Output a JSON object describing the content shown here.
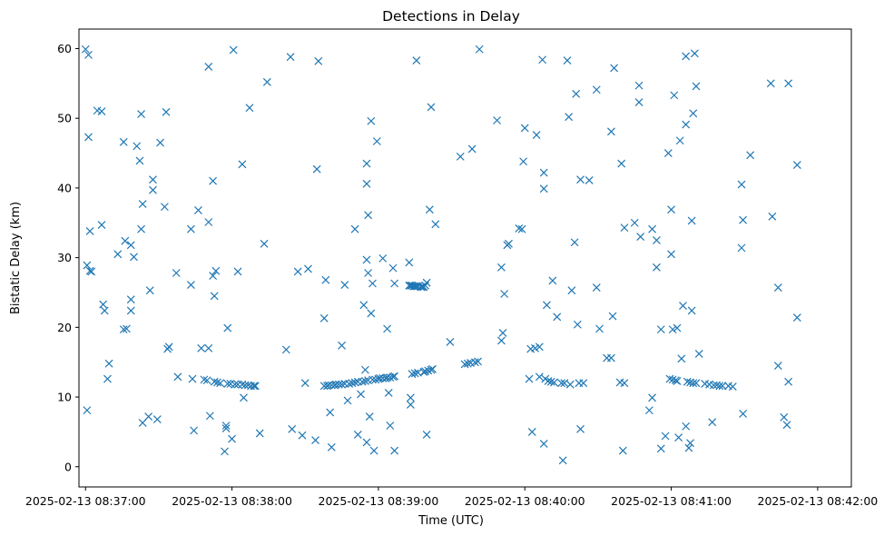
{
  "chart_data": {
    "type": "scatter",
    "title": "Detections in Delay",
    "xlabel": "Time (UTC)",
    "ylabel": "Bistatic Delay (km)",
    "marker": "x",
    "color": "#1f77b4",
    "xlim": [
      -0.045,
      5.23
    ],
    "ylim": [
      -2.9,
      62.8
    ],
    "x_units": "minutes after 2025-02-13 08:37:00",
    "x_ticks": [
      0,
      1,
      2,
      3,
      4,
      5
    ],
    "x_tick_labels": [
      "2025-02-13 08:37:00",
      "2025-02-13 08:38:00",
      "2025-02-13 08:39:00",
      "2025-02-13 08:40:00",
      "2025-02-13 08:41:00",
      "2025-02-13 08:42:00"
    ],
    "y_ticks": [
      0,
      10,
      20,
      30,
      40,
      50,
      60
    ],
    "y_tick_labels": [
      "0",
      "10",
      "20",
      "30",
      "40",
      "50",
      "60"
    ],
    "grid": false,
    "points": [
      [
        0.0,
        59.9
      ],
      [
        0.02,
        59.1
      ],
      [
        0.02,
        47.3
      ],
      [
        0.03,
        33.8
      ],
      [
        0.01,
        28.9
      ],
      [
        0.03,
        28.1
      ],
      [
        0.04,
        28.0
      ],
      [
        0.01,
        8.1
      ],
      [
        0.08,
        51.1
      ],
      [
        0.11,
        51.0
      ],
      [
        0.11,
        34.7
      ],
      [
        0.12,
        23.3
      ],
      [
        0.13,
        22.4
      ],
      [
        0.16,
        14.8
      ],
      [
        0.15,
        12.6
      ],
      [
        0.22,
        30.5
      ],
      [
        0.26,
        46.6
      ],
      [
        0.27,
        32.4
      ],
      [
        0.26,
        19.7
      ],
      [
        0.28,
        19.8
      ],
      [
        0.31,
        31.8
      ],
      [
        0.33,
        30.1
      ],
      [
        0.31,
        24.0
      ],
      [
        0.31,
        22.4
      ],
      [
        0.35,
        46.0
      ],
      [
        0.37,
        43.9
      ],
      [
        0.38,
        50.6
      ],
      [
        0.39,
        37.7
      ],
      [
        0.38,
        34.1
      ],
      [
        0.39,
        6.3
      ],
      [
        0.43,
        7.2
      ],
      [
        0.46,
        41.2
      ],
      [
        0.46,
        39.7
      ],
      [
        0.44,
        25.3
      ],
      [
        0.51,
        46.5
      ],
      [
        0.49,
        6.8
      ],
      [
        0.55,
        50.9
      ],
      [
        0.54,
        37.3
      ],
      [
        0.56,
        16.9
      ],
      [
        0.57,
        17.2
      ],
      [
        0.62,
        27.8
      ],
      [
        0.63,
        12.9
      ],
      [
        0.72,
        34.1
      ],
      [
        0.72,
        26.1
      ],
      [
        0.73,
        12.6
      ],
      [
        0.74,
        5.2
      ],
      [
        0.77,
        36.8
      ],
      [
        0.79,
        17.0
      ],
      [
        0.81,
        12.5
      ],
      [
        0.83,
        12.4
      ],
      [
        0.84,
        57.4
      ],
      [
        0.84,
        35.1
      ],
      [
        0.84,
        17.0
      ],
      [
        0.85,
        7.3
      ],
      [
        0.87,
        41.0
      ],
      [
        0.87,
        27.4
      ],
      [
        0.89,
        28.1
      ],
      [
        0.88,
        24.5
      ],
      [
        0.88,
        12.2
      ],
      [
        0.9,
        12.1
      ],
      [
        0.92,
        12.0
      ],
      [
        0.95,
        2.2
      ],
      [
        0.96,
        5.9
      ],
      [
        0.97,
        19.9
      ],
      [
        0.97,
        11.9
      ],
      [
        0.96,
        5.5
      ],
      [
        1.0,
        4.0
      ],
      [
        0.99,
        11.9
      ],
      [
        1.01,
        59.8
      ],
      [
        1.04,
        28.0
      ],
      [
        1.02,
        11.8
      ],
      [
        1.04,
        11.8
      ],
      [
        1.07,
        43.4
      ],
      [
        1.07,
        11.8
      ],
      [
        1.08,
        9.9
      ],
      [
        1.09,
        11.7
      ],
      [
        1.11,
        11.7
      ],
      [
        1.12,
        51.5
      ],
      [
        1.13,
        11.6
      ],
      [
        1.15,
        11.6
      ],
      [
        1.16,
        11.6
      ],
      [
        1.19,
        4.8
      ],
      [
        1.22,
        32.0
      ],
      [
        1.24,
        55.2
      ],
      [
        1.37,
        16.8
      ],
      [
        1.41,
        5.4
      ],
      [
        1.4,
        58.8
      ],
      [
        1.45,
        28.0
      ],
      [
        1.48,
        4.5
      ],
      [
        1.5,
        12.0
      ],
      [
        1.52,
        28.4
      ],
      [
        1.57,
        3.8
      ],
      [
        1.58,
        42.7
      ],
      [
        1.59,
        58.2
      ],
      [
        1.63,
        21.3
      ],
      [
        1.64,
        26.8
      ],
      [
        1.63,
        11.6
      ],
      [
        1.65,
        11.6
      ],
      [
        1.66,
        11.7
      ],
      [
        1.68,
        11.7
      ],
      [
        1.67,
        7.8
      ],
      [
        1.68,
        2.8
      ],
      [
        1.7,
        11.7
      ],
      [
        1.71,
        11.8
      ],
      [
        1.73,
        11.8
      ],
      [
        1.75,
        11.8
      ],
      [
        1.75,
        17.4
      ],
      [
        1.77,
        26.1
      ],
      [
        1.77,
        11.9
      ],
      [
        1.79,
        9.5
      ],
      [
        1.8,
        11.9
      ],
      [
        1.82,
        12.0
      ],
      [
        1.84,
        34.1
      ],
      [
        1.84,
        12.1
      ],
      [
        1.86,
        4.6
      ],
      [
        1.86,
        12.2
      ],
      [
        1.89,
        12.2
      ],
      [
        1.88,
        10.4
      ],
      [
        1.9,
        23.2
      ],
      [
        1.92,
        43.5
      ],
      [
        1.92,
        40.6
      ],
      [
        1.93,
        36.1
      ],
      [
        1.92,
        29.7
      ],
      [
        1.93,
        27.8
      ],
      [
        1.91,
        13.9
      ],
      [
        1.91,
        12.3
      ],
      [
        1.93,
        12.4
      ],
      [
        1.92,
        3.5
      ],
      [
        1.95,
        49.6
      ],
      [
        1.95,
        22.0
      ],
      [
        1.96,
        26.3
      ],
      [
        1.94,
        7.2
      ],
      [
        1.96,
        12.5
      ],
      [
        1.97,
        2.3
      ],
      [
        1.98,
        12.5
      ],
      [
        1.99,
        46.7
      ],
      [
        2.0,
        12.6
      ],
      [
        2.01,
        12.7
      ],
      [
        2.03,
        29.9
      ],
      [
        2.03,
        12.7
      ],
      [
        2.05,
        12.7
      ],
      [
        2.06,
        19.8
      ],
      [
        2.06,
        12.8
      ],
      [
        2.08,
        12.8
      ],
      [
        2.08,
        5.9
      ],
      [
        2.07,
        10.6
      ],
      [
        2.1,
        28.5
      ],
      [
        2.1,
        12.9
      ],
      [
        2.11,
        13.0
      ],
      [
        2.11,
        2.3
      ],
      [
        2.11,
        26.3
      ],
      [
        2.21,
        29.3
      ],
      [
        2.21,
        26.0
      ],
      [
        2.22,
        26.0
      ],
      [
        2.23,
        26.0
      ],
      [
        2.24,
        25.9
      ],
      [
        2.25,
        25.9
      ],
      [
        2.26,
        25.9
      ],
      [
        2.27,
        25.9
      ],
      [
        2.29,
        25.8
      ],
      [
        2.3,
        25.8
      ],
      [
        2.31,
        25.8
      ],
      [
        2.33,
        26.4
      ],
      [
        2.22,
        9.9
      ],
      [
        2.22,
        8.9
      ],
      [
        2.23,
        13.3
      ],
      [
        2.25,
        13.4
      ],
      [
        2.27,
        13.5
      ],
      [
        2.31,
        13.6
      ],
      [
        2.32,
        13.7
      ],
      [
        2.32,
        26.0
      ],
      [
        2.33,
        4.6
      ],
      [
        2.34,
        13.8
      ],
      [
        2.36,
        13.9
      ],
      [
        2.37,
        14.0
      ],
      [
        2.26,
        58.3
      ],
      [
        2.36,
        51.6
      ],
      [
        2.35,
        36.9
      ],
      [
        2.39,
        34.8
      ],
      [
        2.49,
        17.9
      ],
      [
        2.56,
        44.5
      ],
      [
        2.59,
        14.7
      ],
      [
        2.61,
        14.8
      ],
      [
        2.63,
        14.9
      ],
      [
        2.64,
        45.6
      ],
      [
        2.66,
        15.0
      ],
      [
        2.68,
        15.1
      ],
      [
        2.69,
        59.9
      ],
      [
        2.81,
        49.7
      ],
      [
        2.84,
        28.6
      ],
      [
        2.86,
        24.8
      ],
      [
        2.84,
        18.1
      ],
      [
        2.85,
        19.2
      ],
      [
        2.88,
        31.8
      ],
      [
        2.89,
        32.0
      ],
      [
        2.96,
        34.2
      ],
      [
        2.98,
        34.1
      ],
      [
        3.0,
        48.6
      ],
      [
        2.99,
        43.8
      ],
      [
        3.04,
        16.9
      ],
      [
        3.03,
        12.6
      ],
      [
        3.05,
        5.0
      ],
      [
        3.07,
        17.0
      ],
      [
        3.08,
        47.6
      ],
      [
        3.1,
        17.2
      ],
      [
        3.1,
        12.9
      ],
      [
        3.12,
        58.4
      ],
      [
        3.13,
        42.2
      ],
      [
        3.13,
        39.9
      ],
      [
        3.13,
        3.3
      ],
      [
        3.14,
        12.6
      ],
      [
        3.15,
        23.2
      ],
      [
        3.16,
        12.3
      ],
      [
        3.18,
        12.2
      ],
      [
        3.19,
        26.7
      ],
      [
        3.2,
        12.1
      ],
      [
        3.22,
        21.5
      ],
      [
        3.25,
        12.0
      ],
      [
        3.26,
        0.9
      ],
      [
        3.27,
        12.0
      ],
      [
        3.29,
        58.3
      ],
      [
        3.3,
        50.2
      ],
      [
        3.31,
        11.8
      ],
      [
        3.32,
        25.3
      ],
      [
        3.34,
        32.2
      ],
      [
        3.35,
        53.5
      ],
      [
        3.36,
        20.4
      ],
      [
        3.37,
        12.0
      ],
      [
        3.38,
        41.2
      ],
      [
        3.38,
        5.4
      ],
      [
        3.4,
        12.0
      ],
      [
        3.44,
        41.1
      ],
      [
        3.49,
        54.1
      ],
      [
        3.49,
        25.7
      ],
      [
        3.51,
        19.8
      ],
      [
        3.56,
        15.6
      ],
      [
        3.59,
        48.1
      ],
      [
        3.6,
        21.6
      ],
      [
        3.59,
        15.6
      ],
      [
        3.61,
        57.2
      ],
      [
        3.66,
        43.5
      ],
      [
        3.65,
        12.1
      ],
      [
        3.68,
        12.0
      ],
      [
        3.68,
        34.3
      ],
      [
        3.67,
        2.3
      ],
      [
        3.75,
        35.0
      ],
      [
        3.78,
        54.7
      ],
      [
        3.78,
        52.3
      ],
      [
        3.79,
        33.0
      ],
      [
        3.85,
        8.1
      ],
      [
        3.87,
        34.1
      ],
      [
        3.87,
        9.9
      ],
      [
        3.9,
        32.5
      ],
      [
        3.9,
        28.6
      ],
      [
        3.93,
        19.7
      ],
      [
        3.93,
        2.6
      ],
      [
        3.96,
        4.4
      ],
      [
        3.98,
        45.0
      ],
      [
        3.99,
        12.6
      ],
      [
        4.0,
        30.5
      ],
      [
        4.0,
        36.9
      ],
      [
        4.01,
        12.5
      ],
      [
        4.01,
        19.7
      ],
      [
        4.02,
        53.3
      ],
      [
        4.03,
        12.4
      ],
      [
        4.04,
        19.9
      ],
      [
        4.04,
        12.3
      ],
      [
        4.05,
        4.2
      ],
      [
        4.06,
        46.8
      ],
      [
        4.07,
        15.5
      ],
      [
        4.08,
        23.1
      ],
      [
        4.1,
        5.8
      ],
      [
        4.1,
        58.9
      ],
      [
        4.1,
        49.1
      ],
      [
        4.11,
        12.2
      ],
      [
        4.12,
        2.7
      ],
      [
        4.13,
        12.1
      ],
      [
        4.13,
        3.4
      ],
      [
        4.14,
        35.3
      ],
      [
        4.14,
        22.4
      ],
      [
        4.15,
        50.7
      ],
      [
        4.15,
        12.0
      ],
      [
        4.16,
        59.3
      ],
      [
        4.17,
        12.0
      ],
      [
        4.17,
        54.6
      ],
      [
        4.19,
        16.2
      ],
      [
        4.23,
        11.9
      ],
      [
        4.26,
        11.8
      ],
      [
        4.28,
        6.4
      ],
      [
        4.29,
        11.7
      ],
      [
        4.31,
        11.7
      ],
      [
        4.33,
        11.6
      ],
      [
        4.35,
        11.6
      ],
      [
        4.39,
        11.6
      ],
      [
        4.42,
        11.5
      ],
      [
        4.48,
        40.5
      ],
      [
        4.49,
        35.4
      ],
      [
        4.48,
        31.4
      ],
      [
        4.49,
        7.6
      ],
      [
        4.54,
        44.7
      ],
      [
        4.68,
        55.0
      ],
      [
        4.69,
        35.9
      ],
      [
        4.73,
        25.7
      ],
      [
        4.73,
        14.5
      ],
      [
        4.77,
        7.1
      ],
      [
        4.79,
        6.0
      ],
      [
        4.8,
        55.0
      ],
      [
        4.8,
        12.2
      ],
      [
        4.86,
        43.3
      ],
      [
        4.86,
        21.4
      ]
    ]
  }
}
